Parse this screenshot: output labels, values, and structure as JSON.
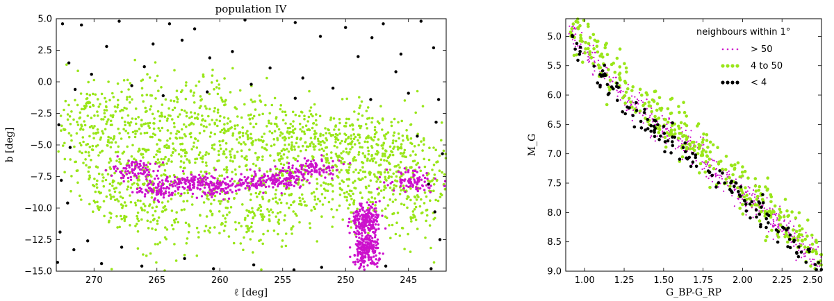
{
  "chart_data": [
    {
      "type": "scatter",
      "title": "population IV",
      "xlabel": "ℓ [deg]",
      "ylabel": "b [deg]",
      "xlim": [
        273,
        242
      ],
      "ylim": [
        -15,
        5
      ],
      "x_ticks": [
        270,
        265,
        260,
        255,
        250,
        245
      ],
      "y_ticks": [
        5.0,
        2.5,
        0.0,
        -2.5,
        -5.0,
        -7.5,
        -10.0,
        -12.5,
        -15.0
      ],
      "x_tick_labels": [
        "270",
        "265",
        "260",
        "255",
        "250",
        "245"
      ],
      "y_tick_labels": [
        "5.0",
        "2.5",
        "0.0",
        "−2.5",
        "−5.0",
        "−7.5",
        "−10.0",
        "−12.5",
        "−15.0"
      ],
      "series": [
        {
          "key": "lt4",
          "color": "#000000",
          "points": [
            [
              272.5,
              4.6
            ],
            [
              271,
              4.5
            ],
            [
              268,
              4.8
            ],
            [
              264,
              4.6
            ],
            [
              262,
              4.2
            ],
            [
              258,
              4.9
            ],
            [
              254,
              4.7
            ],
            [
              250,
              4.3
            ],
            [
              247,
              4.6
            ],
            [
              244,
              4.8
            ],
            [
              272,
              1.5
            ],
            [
              269,
              2.8
            ],
            [
              266,
              1.2
            ],
            [
              263,
              3.3
            ],
            [
              259,
              2.4
            ],
            [
              256,
              1.1
            ],
            [
              252,
              3.6
            ],
            [
              249,
              2.0
            ],
            [
              246,
              0.8
            ],
            [
              243,
              2.7
            ],
            [
              271.5,
              -0.6
            ],
            [
              267,
              -0.3
            ],
            [
              264.5,
              -1.1
            ],
            [
              261,
              -0.8
            ],
            [
              257.5,
              -0.2
            ],
            [
              254,
              -1.3
            ],
            [
              251,
              -0.5
            ],
            [
              248,
              -1.4
            ],
            [
              245,
              -0.9
            ],
            [
              272.8,
              -3.4
            ],
            [
              271.9,
              -5.2
            ],
            [
              272.6,
              -7.8
            ],
            [
              272.1,
              -9.6
            ],
            [
              272.7,
              -11.9
            ],
            [
              271.6,
              -13.3
            ],
            [
              272.9,
              -14.3
            ],
            [
              270.5,
              -12.6
            ],
            [
              269.4,
              -14.4
            ],
            [
              267.8,
              -13.1
            ],
            [
              266.2,
              -14.6
            ],
            [
              262.8,
              -14.0
            ],
            [
              260.5,
              -14.8
            ],
            [
              257.3,
              -14.5
            ],
            [
              254.1,
              -14.9
            ],
            [
              251.9,
              -14.7
            ],
            [
              246.8,
              -14.6
            ],
            [
              243.2,
              -14.8
            ],
            [
              242.5,
              -12.5
            ],
            [
              242.9,
              -10.3
            ],
            [
              243.4,
              -8.1
            ],
            [
              242.3,
              -5.7
            ],
            [
              242.8,
              -3.2
            ],
            [
              242.6,
              -1.4
            ],
            [
              244.3,
              -4.3
            ],
            [
              245.6,
              2.2
            ],
            [
              247.9,
              3.5
            ],
            [
              253.4,
              0.3
            ],
            [
              260.8,
              1.9
            ],
            [
              265.3,
              3.0
            ],
            [
              270.2,
              0.6
            ]
          ]
        },
        {
          "key": "mid",
          "color": "#99e619",
          "points": [
            [
              270,
              -6
            ],
            [
              268,
              -9
            ],
            [
              266,
              -6.7
            ],
            [
              265,
              -11
            ],
            [
              263,
              -5.6
            ],
            [
              261,
              -9.7
            ],
            [
              259,
              -6.3
            ],
            [
              257,
              -10.6
            ],
            [
              255,
              -6
            ],
            [
              253,
              -9.3
            ],
            [
              251,
              -5.8
            ],
            [
              249,
              -8.5
            ],
            [
              247,
              -6.5
            ],
            [
              245,
              -9.9
            ],
            [
              243,
              -7.3
            ],
            [
              270.8,
              -3
            ],
            [
              267.5,
              -2.2
            ],
            [
              264,
              -3
            ],
            [
              260.4,
              -2.1
            ],
            [
              256.8,
              -3.5
            ],
            [
              253.3,
              -4.3
            ],
            [
              249.7,
              -3.9
            ],
            [
              246.1,
              -5.2
            ]
          ]
        },
        {
          "key": "gt50",
          "color": "#cc11cc",
          "points": [
            [
              266.7,
              -7
            ],
            [
              264.7,
              -8.5
            ],
            [
              262,
              -8
            ],
            [
              260,
              -8.4
            ],
            [
              257,
              -7.9
            ],
            [
              255,
              -7.6
            ],
            [
              252.3,
              -6.8
            ],
            [
              248.4,
              -11
            ],
            [
              248.4,
              -13.4
            ],
            [
              244.6,
              -7.8
            ]
          ]
        }
      ]
    },
    {
      "type": "scatter",
      "title": "",
      "xlabel": "G_BP-G_RP",
      "ylabel": "M_G",
      "xlim": [
        0.88,
        2.5
      ],
      "ylim": [
        9.0,
        4.7
      ],
      "x_ticks": [
        1.0,
        1.25,
        1.5,
        1.75,
        2.0,
        2.25,
        2.5
      ],
      "y_ticks": [
        5.0,
        5.5,
        6.0,
        6.5,
        7.0,
        7.5,
        8.0,
        8.5,
        9.0
      ],
      "x_tick_labels": [
        "1.00",
        "1.25",
        "1.50",
        "1.75",
        "2.00",
        "2.25",
        "2.50"
      ],
      "y_tick_labels": [
        "5.0",
        "5.5",
        "6.0",
        "6.5",
        "7.0",
        "7.5",
        "8.0",
        "8.5",
        "9.0"
      ],
      "legend_title": "neighbours within 1°",
      "legend_position": "top-right",
      "series": [
        {
          "key": "gt50",
          "name": "> 50",
          "color": "#cc11cc"
        },
        {
          "key": "mid",
          "name": "4 to 50",
          "color": "#99e619"
        },
        {
          "key": "lt4",
          "name": "< 4",
          "color": "#000000"
        }
      ],
      "sequence": {
        "x": [
          0.9,
          1.1,
          1.3,
          1.5,
          1.7,
          1.9,
          2.1,
          2.3,
          2.5
        ],
        "y": [
          4.9,
          5.6,
          6.2,
          6.6,
          7.0,
          7.5,
          7.9,
          8.4,
          8.9
        ]
      }
    }
  ]
}
